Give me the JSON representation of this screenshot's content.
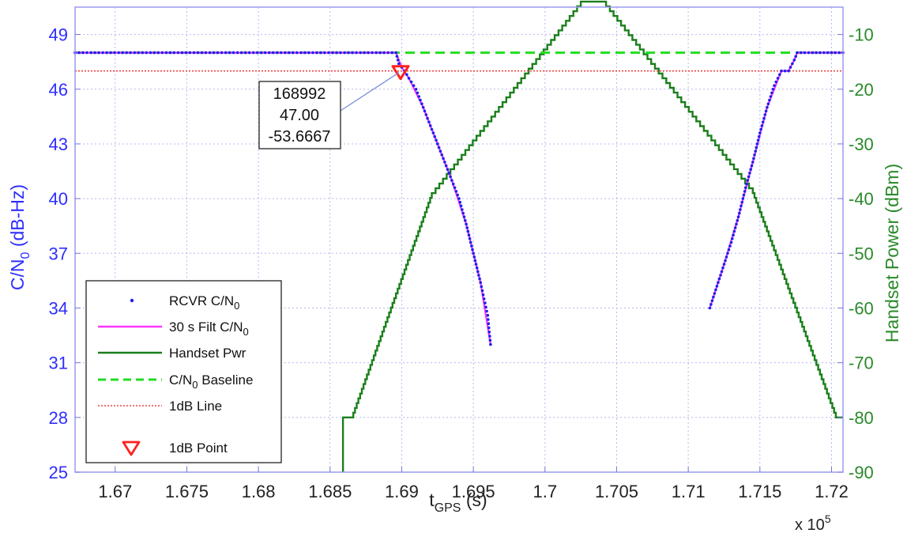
{
  "chart_data": {
    "type": "line",
    "x_axis": {
      "label_main": "t",
      "label_sub": "GPS",
      "label_unit": " (s)",
      "multiplier_text": "x 10",
      "multiplier_exp": "5",
      "lim": [
        1.6672,
        1.7208
      ],
      "ticks": [
        1.67,
        1.675,
        1.68,
        1.685,
        1.69,
        1.695,
        1.7,
        1.705,
        1.71,
        1.715,
        1.72
      ],
      "tick_labels": [
        "1.67",
        "1.675",
        "1.68",
        "1.685",
        "1.69",
        "1.695",
        "1.7",
        "1.705",
        "1.71",
        "1.715",
        "1.72"
      ]
    },
    "y_left": {
      "label_main": "C/N",
      "label_sub": "0",
      "label_unit": " (dB-Hz)",
      "lim": [
        25,
        50.5
      ],
      "ticks": [
        25,
        28,
        31,
        34,
        37,
        40,
        43,
        46,
        49
      ],
      "tick_labels": [
        "25",
        "28",
        "31",
        "34",
        "37",
        "40",
        "43",
        "46",
        "49"
      ],
      "color": "#2e2eff"
    },
    "y_right": {
      "label": "Handset Power (dBm)",
      "lim": [
        -90,
        -5
      ],
      "ticks": [
        -90,
        -80,
        -70,
        -60,
        -50,
        -40,
        -30,
        -20,
        -10
      ],
      "tick_labels": [
        "-90",
        "-80",
        "-70",
        "-60",
        "-50",
        "-40",
        "-30",
        "-20",
        "-10"
      ],
      "color": "#2a8a2a"
    },
    "grid": true,
    "legend": {
      "placement": "bottom-left",
      "entries": [
        {
          "main": "RCVR C/N",
          "sub": "0",
          "tail": ""
        },
        {
          "main": "30 s Filt C/N",
          "sub": "0",
          "tail": ""
        },
        {
          "main": "Handset Pwr",
          "sub": "",
          "tail": ""
        },
        {
          "main": "C/N",
          "sub": "0",
          "tail": " Baseline"
        },
        {
          "main": "1dB Line",
          "sub": "",
          "tail": ""
        },
        {
          "main": "1dB Point",
          "sub": "",
          "tail": ""
        }
      ]
    },
    "series": [
      {
        "id": "rcvr",
        "axis": "left",
        "color": "#2020ee",
        "style": "dots",
        "segments": [
          {
            "x": [
              1.6672,
              1.6896,
              1.6898,
              1.6902,
              1.6905,
              1.691,
              1.6915,
              1.692,
              1.6925,
              1.693,
              1.6935,
              1.694,
              1.6945,
              1.695,
              1.6955,
              1.696,
              1.6962
            ],
            "y": [
              48,
              48,
              47.4,
              47,
              46.6,
              46,
              45,
              44,
              43,
              42,
              41,
              40,
              38.6,
              37,
              35.4,
              33.6,
              32
            ]
          },
          {
            "x": [
              1.7115,
              1.712,
              1.7125,
              1.713,
              1.7135,
              1.714,
              1.7145,
              1.715,
              1.7155,
              1.716,
              1.7165,
              1.717,
              1.7174,
              1.7176,
              1.7208
            ],
            "y": [
              34,
              35.2,
              36.4,
              37.6,
              39,
              40.6,
              42,
              43.6,
              45,
              46.2,
              47,
              47,
              47.6,
              48,
              48
            ]
          }
        ]
      },
      {
        "id": "filt",
        "axis": "left",
        "color": "#ff33ff",
        "style": "line",
        "segments": [
          {
            "x": [
              1.6672,
              1.6896,
              1.69,
              1.6905,
              1.6915,
              1.6925,
              1.6935,
              1.6945,
              1.6955,
              1.6962
            ],
            "y": [
              48,
              48,
              47.2,
              46.6,
              45,
              43,
              41,
              38.6,
              35.4,
              32
            ]
          },
          {
            "x": [
              1.7115,
              1.7125,
              1.7135,
              1.7145,
              1.7155,
              1.7165,
              1.717,
              1.7174,
              1.7176,
              1.7208
            ],
            "y": [
              34,
              36.4,
              39,
              42,
              45,
              47,
              47,
              47.6,
              48,
              48
            ]
          }
        ]
      },
      {
        "id": "pwr",
        "axis": "right",
        "color": "#1a7f1a",
        "style": "line",
        "segments": [
          {
            "x": [
              1.6859,
              1.6859,
              1.6865,
              1.6921,
              1.7025,
              1.704,
              1.7145,
              1.7203,
              1.7208
            ],
            "y": [
              -90,
              -80,
              -80,
              -39,
              -4,
              -4,
              -39,
              -80,
              -80
            ]
          }
        ]
      },
      {
        "id": "baseline",
        "axis": "left",
        "color": "#22dd22",
        "style": "dashed",
        "segments": [
          {
            "x": [
              1.6672,
              1.7208
            ],
            "y": [
              48,
              48
            ]
          }
        ]
      },
      {
        "id": "onedb",
        "axis": "left",
        "color": "#ee4444",
        "style": "dotted",
        "segments": [
          {
            "x": [
              1.6672,
              1.7208
            ],
            "y": [
              47,
              47
            ]
          }
        ]
      }
    ],
    "marker": {
      "x": 1.68992,
      "y": 47,
      "color": "#ff2020"
    },
    "annotation": {
      "lines": [
        "168992",
        "47.00",
        "-53.6667"
      ]
    }
  }
}
